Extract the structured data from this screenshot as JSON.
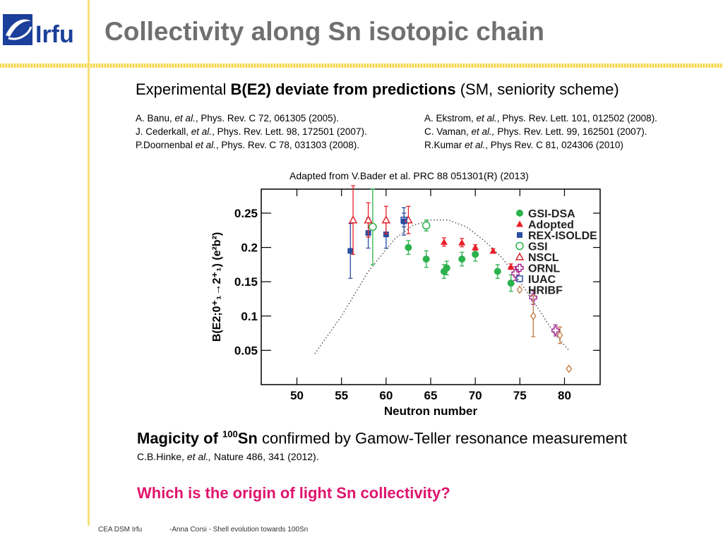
{
  "logo": {
    "text": "Irfu",
    "icon": "irfu-logo"
  },
  "title": "Collectivity along Sn isotopic chain",
  "subtitle": {
    "pre": "Experimental ",
    "bold": "B(E2) deviate from predictions",
    "post": " (SM, seniority scheme)"
  },
  "refs_left": [
    {
      "a": "A. Banu, ",
      "etal": "et al.",
      "b": ", Phys. Rev. C 72, 061305 (2005)."
    },
    {
      "a": "J. Cederkall, ",
      "etal": "et al.",
      "b": ", Phys. Rev. Lett. 98, 172501 (2007)."
    },
    {
      "a": "P.Doornenbal ",
      "etal": "et al.",
      "b": ", Phys. Rev. C 78, 031303 (2008)."
    }
  ],
  "refs_right": [
    {
      "a": "A. Ekstrom, ",
      "etal": "et al.",
      "b": ", Phys. Rev. Lett. 101, 012502 (2008)."
    },
    {
      "a": "C. Vaman, ",
      "etal": "et al.,",
      "b": " Phys. Rev. Lett. 99, 162501 (2007)."
    },
    {
      "a": "R.Kumar ",
      "etal": "et al.",
      "b": ", Phys Rev. C 81, 024306 (2010)"
    }
  ],
  "caption": "Adapted from V.Bader et al. PRC 88 051301(R) (2013)",
  "magicity": {
    "bold1": "Magicity of ",
    "sup": "100",
    "bold2": "Sn",
    "rest": " confirmed by Gamow-Teller resonance measurement"
  },
  "hinke": {
    "a": "C.B.Hinke, ",
    "etal": "et al.,",
    "b": " Nature 486, 341 (2012)."
  },
  "question": "Which is the origin of light Sn collectivity?",
  "footer_left": "CEA DSM Irfu",
  "footer_right": "-Anna Corsi -   Shell evolution towards 100Sn",
  "chart_data": {
    "type": "scatter",
    "xlabel": "Neutron number",
    "ylabel": "B(E2;0⁺₁→2⁺₁) (e²b²)",
    "xlim": [
      46,
      84
    ],
    "ylim": [
      0,
      0.285
    ],
    "xticks": [
      50,
      55,
      60,
      65,
      70,
      75,
      80
    ],
    "yticks": [
      0.05,
      0.1,
      0.15,
      0.2,
      0.25
    ],
    "grid": false,
    "legend_position": "top-right",
    "series": [
      {
        "name": "GSI-DSA",
        "marker": "filled-circle",
        "color": "#2bb24c",
        "points": [
          [
            62.5,
            0.2,
            0.01
          ],
          [
            64.5,
            0.183,
            0.012
          ],
          [
            66.5,
            0.165,
            0.01
          ],
          [
            66.8,
            0.17,
            0.01
          ],
          [
            68.5,
            0.183,
            0.01
          ],
          [
            70,
            0.19,
            0.01
          ],
          [
            72.5,
            0.165,
            0.01
          ],
          [
            74,
            0.148,
            0.012
          ]
        ]
      },
      {
        "name": "Adopted",
        "marker": "filled-triangle",
        "color": "#e8202a",
        "points": [
          [
            66.5,
            0.208,
            0.006
          ],
          [
            68.5,
            0.207,
            0.006
          ],
          [
            70,
            0.2,
            0.004
          ],
          [
            72,
            0.195,
            0.003
          ],
          [
            74,
            0.172,
            0.004
          ]
        ]
      },
      {
        "name": "REX-ISOLDE",
        "marker": "filled-square",
        "color": "#2a4fa0",
        "points": [
          [
            56,
            0.195,
            0.04
          ],
          [
            58,
            0.221,
            0.022
          ],
          [
            60,
            0.219,
            0.02
          ],
          [
            62,
            0.238,
            0.02
          ]
        ]
      },
      {
        "name": "GSI",
        "marker": "open-circle",
        "color": "#2bb24c",
        "points": [
          [
            58.5,
            0.23,
            0.055
          ],
          [
            64.5,
            0.232,
            0.008
          ]
        ]
      },
      {
        "name": "NSCL",
        "marker": "open-triangle",
        "color": "#e8202a",
        "points": [
          [
            56.3,
            0.24,
            0.05
          ],
          [
            60,
            0.24,
            0.02
          ],
          [
            58,
            0.24,
            0.025
          ],
          [
            62.5,
            0.24,
            0.02
          ]
        ]
      },
      {
        "name": "ORNL",
        "marker": "open-cross",
        "color": "#a0208c",
        "points": [
          [
            74.5,
            0.162,
            0.01
          ],
          [
            76.5,
            0.127,
            0.01
          ],
          [
            79,
            0.079,
            0.008
          ]
        ]
      },
      {
        "name": "IUAC",
        "marker": "open-square",
        "color": "#2a4fa0",
        "points": [
          [
            62,
            0.24,
            0.01
          ]
        ]
      },
      {
        "name": "HRIBF",
        "marker": "open-diamond",
        "color": "#c07a40",
        "points": [
          [
            76.5,
            0.1,
            0.03
          ],
          [
            79.5,
            0.072,
            0.012
          ],
          [
            80.5,
            0.023,
            0.002
          ]
        ]
      }
    ],
    "prediction_curve": {
      "style": "dotted",
      "points": [
        [
          52,
          0.045
        ],
        [
          55,
          0.1
        ],
        [
          58,
          0.165
        ],
        [
          61,
          0.213
        ],
        [
          63,
          0.232
        ],
        [
          65,
          0.24
        ],
        [
          67,
          0.24
        ],
        [
          69,
          0.23
        ],
        [
          71,
          0.21
        ],
        [
          73,
          0.185
        ],
        [
          75,
          0.15
        ],
        [
          77,
          0.112
        ],
        [
          79,
          0.072
        ],
        [
          80.5,
          0.05
        ]
      ]
    }
  }
}
